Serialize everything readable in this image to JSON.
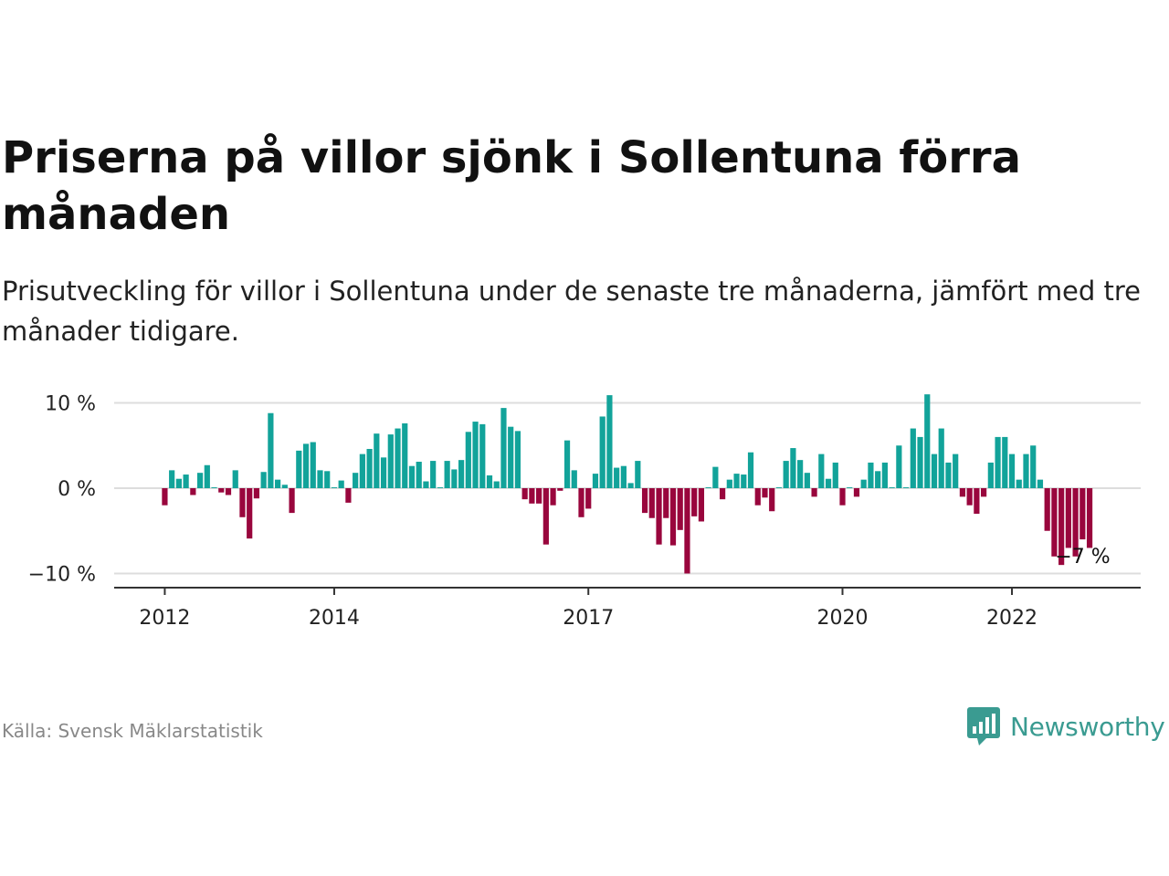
{
  "title": "Priserna på villor sjönk i Sollentuna förra månaden",
  "subtitle": "Prisutveckling för villor i Sollentuna under de senaste tre månaderna, jämfört med tre månader tidigare.",
  "source": "Källa: Svensk Mäklarstatistik",
  "brand": "Newsworthy",
  "colors": {
    "positive": "#12a39a",
    "negative": "#99063d",
    "brand": "#3a9b91",
    "gridline": "#dddddd",
    "axis": "#333333"
  },
  "chart_data": {
    "type": "bar",
    "ylim": [
      -10.5,
      11
    ],
    "y_ticks": [
      {
        "value": 10,
        "label": "10 %"
      },
      {
        "value": 0,
        "label": "0 %"
      },
      {
        "value": -10,
        "label": "−10 %"
      }
    ],
    "x_ticks": [
      {
        "index": 1,
        "label": "2012"
      },
      {
        "index": 25,
        "label": "2014"
      },
      {
        "index": 61,
        "label": "2017"
      },
      {
        "index": 97,
        "label": "2020"
      },
      {
        "index": 121,
        "label": "2022"
      }
    ],
    "grid": true,
    "annotation": {
      "index": 131,
      "label": "−7 %"
    },
    "values": [
      0,
      -2.0,
      2.1,
      1.1,
      1.6,
      -0.8,
      1.8,
      2.7,
      0.1,
      -0.5,
      -0.8,
      2.1,
      -3.4,
      -5.9,
      -1.2,
      1.9,
      8.8,
      1.0,
      0.4,
      -2.9,
      4.4,
      5.2,
      5.4,
      2.1,
      2.0,
      0.1,
      0.9,
      -1.7,
      1.8,
      4.0,
      4.6,
      6.4,
      3.6,
      6.3,
      7.0,
      7.6,
      2.6,
      3.1,
      0.8,
      3.2,
      0.1,
      3.2,
      2.2,
      3.3,
      6.6,
      7.8,
      7.5,
      1.5,
      0.8,
      9.4,
      7.2,
      6.7,
      -1.3,
      -1.8,
      -1.8,
      -6.6,
      -2.0,
      -0.3,
      5.6,
      2.1,
      -3.4,
      -2.4,
      1.7,
      8.4,
      10.9,
      2.4,
      2.6,
      0.6,
      3.2,
      -2.9,
      -3.5,
      -6.6,
      -3.5,
      -6.7,
      -4.9,
      -10.0,
      -3.3,
      -3.9,
      0.1,
      2.5,
      -1.3,
      1.0,
      1.7,
      1.6,
      4.2,
      -2.0,
      -1.1,
      -2.7,
      0.1,
      3.2,
      4.7,
      3.3,
      1.8,
      -1.0,
      4.0,
      1.1,
      3.0,
      -2.0,
      0.1,
      -1.0,
      1.0,
      3.0,
      2.0,
      3.0,
      0.1,
      5.0,
      0.1,
      7.0,
      6.0,
      11.0,
      4.0,
      7.0,
      3.0,
      4.0,
      -1.0,
      -2.0,
      -3.0,
      -1.0,
      3.0,
      6.0,
      6.0,
      4.0,
      1.0,
      4.0,
      5.0,
      1.0,
      -5.0,
      -8.0,
      -9.0,
      -7.0,
      -8.0,
      -6.0,
      -7.0
    ]
  }
}
